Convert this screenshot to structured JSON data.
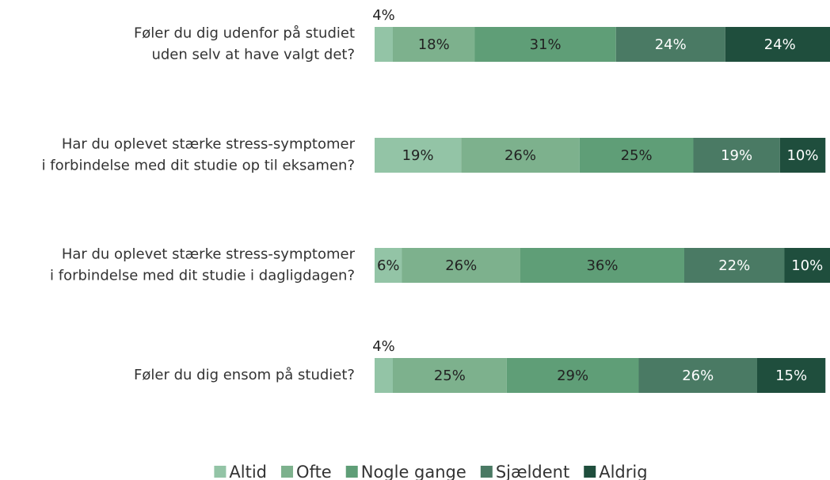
{
  "chart_data": {
    "type": "stacked_barh",
    "categories": [
      [
        "Føler du dig udenfor på studiet",
        "uden selv at have valgt det?"
      ],
      [
        "Har du oplevet stærke stress-symptomer",
        "i forbindelse med dit studie op til eksamen?"
      ],
      [
        "Har du oplevet stærke stress-symptomer",
        "i forbindelse med dit studie i dagligdagen?"
      ],
      [
        "Føler du dig ensom på studiet?"
      ]
    ],
    "series": [
      {
        "name": "Altid",
        "color": "#93c4a6",
        "values": [
          4,
          19,
          6,
          4
        ],
        "value_labels": [
          "4%",
          "19%",
          "6%",
          "4%"
        ]
      },
      {
        "name": "Ofte",
        "color": "#7db18d",
        "values": [
          18,
          26,
          26,
          25
        ],
        "value_labels": [
          "18%",
          "26%",
          "26%",
          "25%"
        ]
      },
      {
        "name": "Nogle gange",
        "color": "#5f9e77",
        "values": [
          31,
          25,
          36,
          29
        ],
        "value_labels": [
          "31%",
          "25%",
          "36%",
          "29%"
        ]
      },
      {
        "name": "Sjældent",
        "color": "#4a7a64",
        "values": [
          24,
          19,
          22,
          26
        ],
        "value_labels": [
          "24%",
          "19%",
          "22%",
          "26%"
        ]
      },
      {
        "name": "Aldrig",
        "color": "#1f4e3d",
        "values": [
          24,
          10,
          10,
          15
        ],
        "value_labels": [
          "24%",
          "10%",
          "10%",
          "15%"
        ]
      }
    ],
    "xlim": [
      0,
      100
    ],
    "legend": "bottom"
  }
}
